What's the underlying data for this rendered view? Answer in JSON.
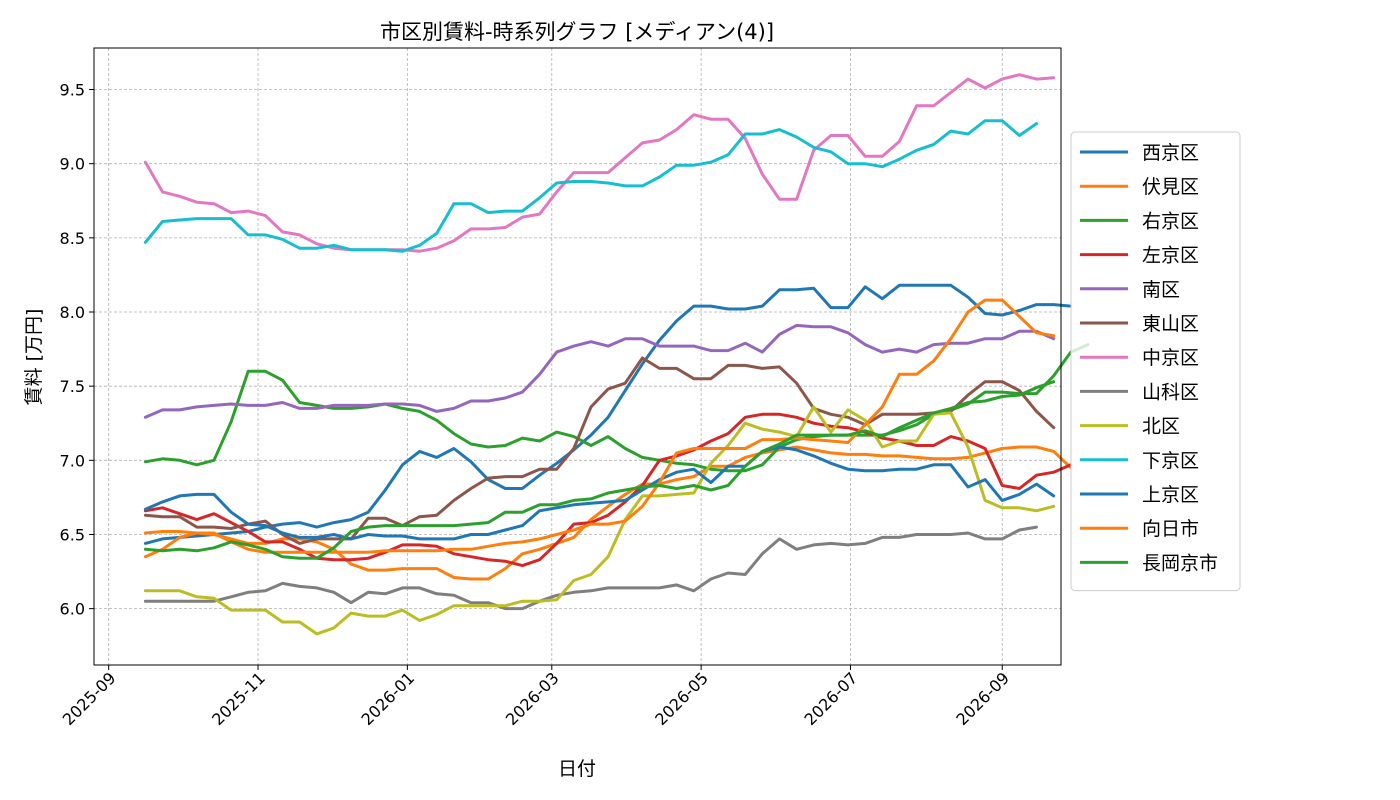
{
  "chart_data": {
    "type": "line",
    "title": "市区別賃料-時系列グラフ [メディアン(4)]",
    "xlabel": "日付",
    "ylabel": "賃料 [万円]",
    "xlim": [
      "2025-08-26",
      "2026-09-25"
    ],
    "ylim": [
      5.62,
      9.78
    ],
    "x_ticks": [
      "2025-09",
      "2025-11",
      "2026-01",
      "2026-03",
      "2026-05",
      "2026-07",
      "2026-09"
    ],
    "x_tick_dates": [
      "2025-09-01",
      "2025-11-01",
      "2026-01-01",
      "2026-03-01",
      "2026-05-01",
      "2026-07-01",
      "2026-09-01"
    ],
    "y_ticks": [
      "6.0",
      "6.5",
      "7.0",
      "7.5",
      "8.0",
      "8.5",
      "9.0",
      "9.5"
    ],
    "y_tick_values": [
      6.0,
      6.5,
      7.0,
      7.5,
      8.0,
      8.5,
      9.0,
      9.5
    ],
    "grid": true,
    "legend_position": "right",
    "x_start": "2025-09-16",
    "x_step_days": 7,
    "series": [
      {
        "name": "西京区",
        "color": "#1f77b4",
        "values": [
          6.44,
          6.47,
          6.48,
          6.49,
          6.5,
          6.51,
          6.52,
          6.55,
          6.57,
          6.58,
          6.55,
          6.58,
          6.6,
          6.65,
          6.8,
          6.97,
          7.06,
          7.02,
          7.08,
          6.99,
          6.87,
          6.81,
          6.81,
          6.9,
          6.98,
          7.07,
          7.17,
          7.29,
          7.47,
          7.65,
          7.81,
          7.94,
          8.04,
          8.04,
          8.02,
          8.02,
          8.04,
          8.15,
          8.15,
          8.16,
          8.03,
          8.03,
          8.17,
          8.09,
          8.18,
          8.18,
          8.18,
          8.18,
          8.1,
          7.99,
          7.98,
          8.01,
          8.05,
          8.05,
          8.04
        ]
      },
      {
        "name": "伏見区",
        "color": "#ff7f0e",
        "values": [
          6.51,
          6.52,
          6.52,
          6.51,
          6.5,
          6.47,
          6.44,
          6.44,
          6.47,
          6.47,
          6.45,
          6.4,
          6.3,
          6.26,
          6.26,
          6.27,
          6.27,
          6.27,
          6.21,
          6.2,
          6.2,
          6.27,
          6.37,
          6.4,
          6.44,
          6.48,
          6.6,
          6.69,
          6.77,
          6.84,
          6.84,
          6.87,
          6.89,
          6.96,
          6.96,
          7.02,
          7.05,
          7.07,
          7.09,
          7.07,
          7.05,
          7.04,
          7.04,
          7.03,
          7.03,
          7.02,
          7.01,
          7.01,
          7.02,
          7.05,
          7.08,
          7.09,
          7.09,
          7.06,
          6.95
        ]
      },
      {
        "name": "右京区",
        "color": "#2ca02c",
        "values": [
          6.99,
          7.01,
          7.0,
          6.97,
          7.0,
          7.26,
          7.6,
          7.6,
          7.54,
          7.39,
          7.37,
          7.35,
          7.35,
          7.36,
          7.38,
          7.35,
          7.33,
          7.27,
          7.18,
          7.11,
          7.09,
          7.1,
          7.15,
          7.13,
          7.19,
          7.16,
          7.1,
          7.16,
          7.08,
          7.02,
          7.0,
          6.98,
          6.97,
          6.94,
          6.93,
          6.93,
          6.97,
          7.09,
          7.14,
          7.16,
          7.17,
          7.17,
          7.17,
          7.17,
          7.2,
          7.24,
          7.31,
          7.34,
          7.38,
          7.46,
          7.46,
          7.45,
          7.45,
          7.57,
          7.73,
          7.78
        ]
      },
      {
        "name": "左京区",
        "color": "#d62728",
        "values": [
          6.66,
          6.68,
          6.64,
          6.6,
          6.64,
          6.58,
          6.52,
          6.45,
          6.45,
          6.4,
          6.34,
          6.33,
          6.33,
          6.34,
          6.38,
          6.43,
          6.43,
          6.42,
          6.37,
          6.35,
          6.33,
          6.32,
          6.29,
          6.33,
          6.44,
          6.57,
          6.58,
          6.63,
          6.72,
          6.83,
          7.0,
          7.03,
          7.07,
          7.13,
          7.18,
          7.29,
          7.31,
          7.31,
          7.29,
          7.25,
          7.23,
          7.22,
          7.19,
          7.15,
          7.13,
          7.1,
          7.1,
          7.16,
          7.13,
          7.08,
          6.83,
          6.81,
          6.9,
          6.92,
          6.97
        ]
      },
      {
        "name": "南区",
        "color": "#9467bd",
        "values": [
          7.29,
          7.34,
          7.34,
          7.36,
          7.37,
          7.38,
          7.37,
          7.37,
          7.39,
          7.35,
          7.35,
          7.37,
          7.37,
          7.37,
          7.38,
          7.38,
          7.37,
          7.33,
          7.35,
          7.4,
          7.4,
          7.42,
          7.46,
          7.58,
          7.73,
          7.77,
          7.8,
          7.77,
          7.82,
          7.82,
          7.77,
          7.77,
          7.77,
          7.74,
          7.74,
          7.79,
          7.73,
          7.85,
          7.91,
          7.9,
          7.9,
          7.86,
          7.78,
          7.73,
          7.75,
          7.73,
          7.78,
          7.79,
          7.79,
          7.82,
          7.82,
          7.87,
          7.87,
          7.82
        ]
      },
      {
        "name": "東山区",
        "color": "#8c564b",
        "values": [
          6.63,
          6.62,
          6.62,
          6.55,
          6.55,
          6.54,
          6.57,
          6.59,
          6.5,
          6.44,
          6.47,
          6.47,
          6.47,
          6.61,
          6.61,
          6.56,
          6.62,
          6.63,
          6.73,
          6.81,
          6.88,
          6.89,
          6.89,
          6.94,
          6.94,
          7.08,
          7.36,
          7.48,
          7.52,
          7.69,
          7.62,
          7.62,
          7.55,
          7.55,
          7.64,
          7.64,
          7.62,
          7.63,
          7.52,
          7.35,
          7.31,
          7.29,
          7.24,
          7.31,
          7.31,
          7.31,
          7.32,
          7.33,
          7.44,
          7.53,
          7.53,
          7.47,
          7.33,
          7.22
        ]
      },
      {
        "name": "中京区",
        "color": "#e377c2",
        "values": [
          9.01,
          8.81,
          8.78,
          8.74,
          8.73,
          8.67,
          8.68,
          8.65,
          8.54,
          8.52,
          8.46,
          8.43,
          8.42,
          8.42,
          8.42,
          8.42,
          8.41,
          8.43,
          8.48,
          8.56,
          8.56,
          8.57,
          8.64,
          8.66,
          8.81,
          8.94,
          8.94,
          8.94,
          9.04,
          9.14,
          9.16,
          9.23,
          9.33,
          9.3,
          9.3,
          9.17,
          8.93,
          8.76,
          8.76,
          9.09,
          9.19,
          9.19,
          9.05,
          9.05,
          9.15,
          9.39,
          9.39,
          9.48,
          9.57,
          9.51,
          9.57,
          9.6,
          9.57,
          9.58
        ]
      },
      {
        "name": "山科区",
        "color": "#7f7f7f",
        "values": [
          6.05,
          6.05,
          6.05,
          6.05,
          6.05,
          6.08,
          6.11,
          6.12,
          6.17,
          6.15,
          6.14,
          6.11,
          6.04,
          6.11,
          6.1,
          6.14,
          6.14,
          6.1,
          6.09,
          6.04,
          6.04,
          6.0,
          6.0,
          6.05,
          6.09,
          6.11,
          6.12,
          6.14,
          6.14,
          6.14,
          6.14,
          6.16,
          6.12,
          6.2,
          6.24,
          6.23,
          6.37,
          6.47,
          6.4,
          6.43,
          6.44,
          6.43,
          6.44,
          6.48,
          6.48,
          6.5,
          6.5,
          6.5,
          6.51,
          6.47,
          6.47,
          6.53,
          6.55
        ]
      },
      {
        "name": "北区",
        "color": "#bcbd22",
        "values": [
          6.12,
          6.12,
          6.12,
          6.08,
          6.07,
          5.99,
          5.99,
          5.99,
          5.91,
          5.91,
          5.83,
          5.87,
          5.97,
          5.95,
          5.95,
          5.99,
          5.92,
          5.96,
          6.02,
          6.02,
          6.02,
          6.02,
          6.05,
          6.05,
          6.06,
          6.19,
          6.23,
          6.35,
          6.6,
          6.76,
          6.76,
          6.77,
          6.78,
          6.98,
          7.1,
          7.25,
          7.21,
          7.19,
          7.16,
          7.36,
          7.19,
          7.34,
          7.27,
          7.09,
          7.13,
          7.13,
          7.31,
          7.32,
          7.09,
          6.73,
          6.68,
          6.68,
          6.66,
          6.69
        ]
      },
      {
        "name": "下京区",
        "color": "#17becf",
        "values": [
          8.47,
          8.61,
          8.62,
          8.63,
          8.63,
          8.63,
          8.52,
          8.52,
          8.49,
          8.43,
          8.43,
          8.45,
          8.42,
          8.42,
          8.42,
          8.41,
          8.45,
          8.53,
          8.73,
          8.73,
          8.67,
          8.68,
          8.68,
          8.77,
          8.87,
          8.88,
          8.88,
          8.87,
          8.85,
          8.85,
          8.91,
          8.99,
          8.99,
          9.01,
          9.06,
          9.2,
          9.2,
          9.23,
          9.18,
          9.11,
          9.08,
          9.0,
          9.0,
          8.98,
          9.03,
          9.09,
          9.13,
          9.22,
          9.2,
          9.29,
          9.29,
          9.19,
          9.27
        ]
      },
      {
        "name": "上京区",
        "color": "#1f77b4",
        "values": [
          6.67,
          6.72,
          6.76,
          6.77,
          6.77,
          6.65,
          6.57,
          6.56,
          6.51,
          6.48,
          6.48,
          6.5,
          6.47,
          6.5,
          6.49,
          6.49,
          6.47,
          6.47,
          6.47,
          6.5,
          6.5,
          6.53,
          6.56,
          6.66,
          6.68,
          6.7,
          6.71,
          6.72,
          6.73,
          6.8,
          6.87,
          6.92,
          6.94,
          6.85,
          6.96,
          6.96,
          7.06,
          7.09,
          7.07,
          7.03,
          6.98,
          6.94,
          6.93,
          6.93,
          6.94,
          6.94,
          6.97,
          6.97,
          6.82,
          6.87,
          6.73,
          6.77,
          6.84,
          6.76
        ]
      },
      {
        "name": "向日市",
        "color": "#ff7f0e",
        "values": [
          6.35,
          6.4,
          6.48,
          6.51,
          6.51,
          6.45,
          6.4,
          6.38,
          6.38,
          6.38,
          6.38,
          6.38,
          6.38,
          6.38,
          6.39,
          6.39,
          6.39,
          6.39,
          6.4,
          6.4,
          6.42,
          6.44,
          6.45,
          6.47,
          6.5,
          6.53,
          6.57,
          6.57,
          6.59,
          6.69,
          6.85,
          7.05,
          7.08,
          7.08,
          7.08,
          7.08,
          7.14,
          7.14,
          7.15,
          7.14,
          7.13,
          7.12,
          7.24,
          7.36,
          7.58,
          7.58,
          7.67,
          7.82,
          8.0,
          8.08,
          8.08,
          7.97,
          7.86,
          7.84
        ]
      },
      {
        "name": "長岡京市",
        "color": "#2ca02c",
        "values": [
          6.4,
          6.39,
          6.4,
          6.39,
          6.41,
          6.45,
          6.43,
          6.4,
          6.35,
          6.34,
          6.34,
          6.41,
          6.52,
          6.55,
          6.56,
          6.56,
          6.56,
          6.56,
          6.56,
          6.57,
          6.58,
          6.65,
          6.65,
          6.7,
          6.7,
          6.73,
          6.74,
          6.78,
          6.8,
          6.82,
          6.83,
          6.81,
          6.83,
          6.8,
          6.83,
          6.96,
          7.06,
          7.11,
          7.17,
          7.17,
          7.17,
          7.17,
          7.2,
          7.16,
          7.22,
          7.27,
          7.32,
          7.35,
          7.39,
          7.4,
          7.43,
          7.44,
          7.49,
          7.53
        ]
      }
    ]
  }
}
